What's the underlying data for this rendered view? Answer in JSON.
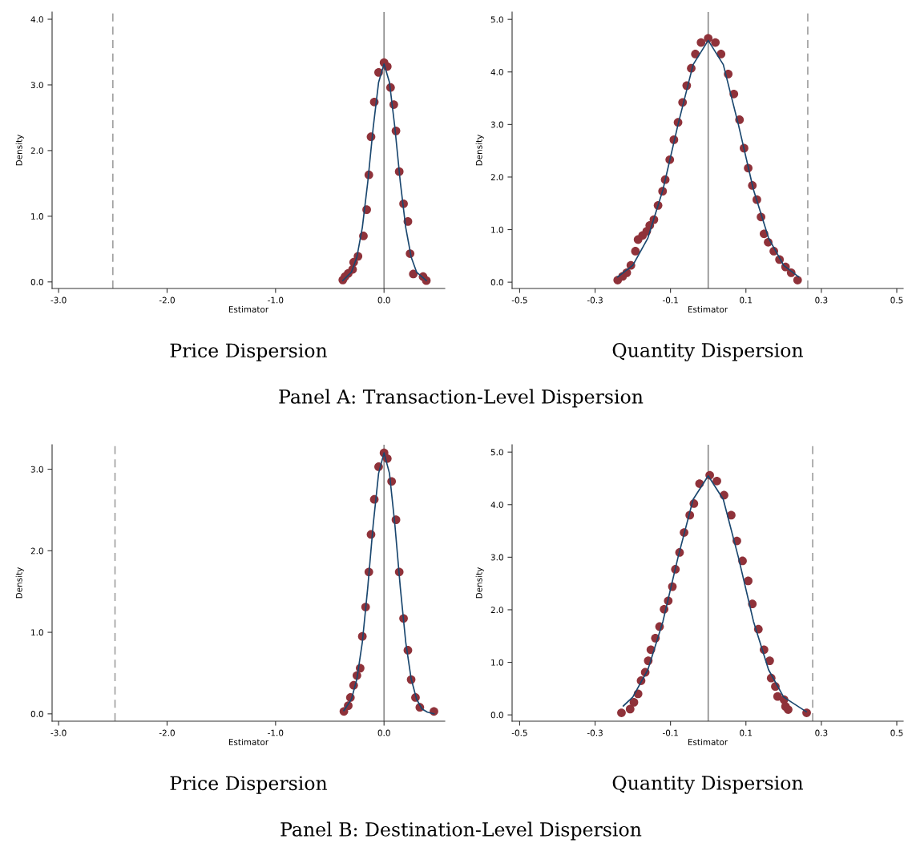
{
  "chart_data": [
    {
      "type": "scatter",
      "title": "Price Dispersion",
      "xlabel": "Estimator",
      "ylabel": "Density",
      "annotations": [
        "Panel A: Transaction-Level Dispersion"
      ],
      "xlim": [
        -3.06,
        0.56
      ],
      "ylim": [
        -0.1,
        4.11
      ],
      "xticks": [
        {
          "value": -3,
          "label": "-3.0"
        },
        {
          "value": -2,
          "label": "-2.0"
        },
        {
          "value": -1,
          "label": "-1.0"
        },
        {
          "value": 0,
          "label": "0.0"
        }
      ],
      "yticks": [
        {
          "value": 0,
          "label": "0.0"
        },
        {
          "value": 1,
          "label": "1.0"
        },
        {
          "value": 2,
          "label": "2.0"
        },
        {
          "value": 3,
          "label": "3.0"
        },
        {
          "value": 4,
          "label": "4.0"
        }
      ],
      "ref_lines": [
        {
          "axis": "x",
          "value": 0,
          "color": "#8c8c8c",
          "line_style": "solid"
        },
        {
          "axis": "x",
          "value": -2.5,
          "color": "#a0a0a0",
          "line_style": "dashed"
        }
      ],
      "series": [
        {
          "marker": "circle",
          "color": "#8f323a",
          "x": [
            -0.38,
            -0.36,
            -0.33,
            -0.29,
            -0.28,
            -0.24,
            -0.19,
            -0.16,
            -0.14,
            -0.12,
            -0.09,
            -0.05,
            0,
            0.03,
            0.06,
            0.09,
            0.11,
            0.14,
            0.18,
            0.22,
            0.24,
            0.27,
            0.36,
            0.39
          ],
          "values": [
            0.03,
            0.08,
            0.13,
            0.19,
            0.3,
            0.39,
            0.7,
            1.1,
            1.63,
            2.21,
            2.74,
            3.19,
            3.34,
            3.28,
            2.96,
            2.7,
            2.3,
            1.68,
            1.19,
            0.92,
            0.43,
            0.12,
            0.08,
            0.02
          ]
        },
        {
          "type": "line",
          "color": "#1a476f",
          "x": [
            -0.38,
            -0.3,
            -0.25,
            -0.2,
            -0.15,
            -0.1,
            -0.05,
            0,
            0.05,
            0.1,
            0.15,
            0.2,
            0.25,
            0.3,
            0.39
          ],
          "values": [
            0.02,
            0.15,
            0.38,
            0.83,
            1.52,
            2.35,
            3.04,
            3.32,
            3.04,
            2.35,
            1.52,
            0.83,
            0.38,
            0.15,
            0.02
          ]
        }
      ]
    },
    {
      "type": "scatter",
      "title": "Quantity Dispersion",
      "xlabel": "Estimator",
      "ylabel": "Density",
      "xlim": [
        -0.52,
        0.517
      ],
      "ylim": [
        -0.12,
        5.14
      ],
      "xticks": [
        -0.5,
        -0.3,
        -0.1,
        0.1,
        0.3,
        0.5
      ],
      "yticks": [
        {
          "value": 0,
          "label": "0.0"
        },
        {
          "value": 1,
          "label": "1.0"
        },
        {
          "value": 2,
          "label": "2.0"
        },
        {
          "value": 3,
          "label": "3.0"
        },
        {
          "value": 4,
          "label": "4.0"
        },
        {
          "value": 5,
          "label": "5.0"
        }
      ],
      "ref_lines": [
        {
          "axis": "x",
          "value": 0,
          "color": "#8c8c8c",
          "line_style": "solid"
        },
        {
          "axis": "x",
          "value": 0.264,
          "color": "#a0a0a0",
          "line_style": "dashed"
        }
      ],
      "series": [
        {
          "marker": "circle",
          "color": "#8f323a",
          "x": [
            -0.24,
            -0.227,
            -0.216,
            -0.205,
            -0.193,
            -0.186,
            -0.174,
            -0.163,
            -0.155,
            -0.144,
            -0.133,
            -0.121,
            -0.114,
            -0.102,
            -0.091,
            -0.08,
            -0.068,
            -0.057,
            -0.045,
            -0.034,
            -0.019,
            0,
            0.019,
            0.034,
            0.053,
            0.068,
            0.083,
            0.095,
            0.106,
            0.117,
            0.129,
            0.14,
            0.148,
            0.159,
            0.174,
            0.189,
            0.205,
            0.22,
            0.237
          ],
          "values": [
            0.04,
            0.11,
            0.18,
            0.32,
            0.59,
            0.81,
            0.89,
            0.97,
            1.08,
            1.19,
            1.46,
            1.73,
            1.95,
            2.33,
            2.71,
            3.04,
            3.42,
            3.74,
            4.07,
            4.34,
            4.56,
            4.64,
            4.56,
            4.34,
            3.96,
            3.58,
            3.09,
            2.55,
            2.17,
            1.84,
            1.57,
            1.24,
            0.92,
            0.76,
            0.59,
            0.43,
            0.29,
            0.18,
            0.04
          ]
        },
        {
          "type": "line",
          "color": "#1a476f",
          "x": [
            -0.24,
            -0.2,
            -0.16,
            -0.12,
            -0.08,
            -0.04,
            0,
            0.04,
            0.08,
            0.12,
            0.16,
            0.2,
            0.24
          ],
          "values": [
            0.1,
            0.32,
            0.84,
            1.76,
            3.0,
            4.14,
            4.6,
            4.14,
            3.0,
            1.76,
            0.84,
            0.32,
            0.1
          ]
        }
      ]
    },
    {
      "type": "scatter",
      "title": "Price Dispersion",
      "xlabel": "Estimator",
      "ylabel": "Density",
      "annotations": [
        "Panel B: Destination-Level Dispersion"
      ],
      "xlim": [
        -3.06,
        0.56
      ],
      "ylim": [
        -0.09,
        3.3
      ],
      "xticks": [
        {
          "value": -3,
          "label": "-3.0"
        },
        {
          "value": -2,
          "label": "-2.0"
        },
        {
          "value": -1,
          "label": "-1.0"
        },
        {
          "value": 0,
          "label": "0.0"
        }
      ],
      "yticks": [
        {
          "value": 0,
          "label": "0.0"
        },
        {
          "value": 1,
          "label": "1.0"
        },
        {
          "value": 2,
          "label": "2.0"
        },
        {
          "value": 3,
          "label": "3.0"
        }
      ],
      "ref_lines": [
        {
          "axis": "x",
          "value": 0,
          "color": "#8c8c8c",
          "line_style": "solid"
        },
        {
          "axis": "x",
          "value": -2.48,
          "color": "#a0a0a0",
          "line_style": "dashed"
        }
      ],
      "series": [
        {
          "marker": "circle",
          "color": "#8f323a",
          "x": [
            -0.37,
            -0.33,
            -0.31,
            -0.28,
            -0.25,
            -0.22,
            -0.2,
            -0.17,
            -0.14,
            -0.12,
            -0.09,
            -0.05,
            0,
            0.03,
            0.07,
            0.11,
            0.14,
            0.18,
            0.22,
            0.25,
            0.29,
            0.33,
            0.46
          ],
          "values": [
            0.03,
            0.1,
            0.2,
            0.35,
            0.47,
            0.56,
            0.95,
            1.31,
            1.74,
            2.2,
            2.63,
            3.03,
            3.2,
            3.13,
            2.85,
            2.38,
            1.74,
            1.17,
            0.78,
            0.42,
            0.2,
            0.08,
            0.03
          ]
        },
        {
          "type": "line",
          "color": "#1a476f",
          "x": [
            -0.37,
            -0.3,
            -0.25,
            -0.2,
            -0.15,
            -0.1,
            -0.05,
            0,
            0.05,
            0.1,
            0.15,
            0.2,
            0.25,
            0.3,
            0.35,
            0.4,
            0.46
          ],
          "values": [
            0.04,
            0.18,
            0.43,
            0.88,
            1.55,
            2.32,
            2.95,
            3.2,
            2.95,
            2.32,
            1.55,
            0.88,
            0.43,
            0.18,
            0.06,
            0.02,
            0.0
          ]
        }
      ]
    },
    {
      "type": "scatter",
      "title": "Quantity Dispersion",
      "xlabel": "Estimator",
      "ylabel": "Density",
      "xlim": [
        -0.52,
        0.517
      ],
      "ylim": [
        -0.12,
        5.14
      ],
      "xticks": [
        -0.5,
        -0.3,
        -0.1,
        0.1,
        0.3,
        0.5
      ],
      "yticks": [
        {
          "value": 0,
          "label": "0.0"
        },
        {
          "value": 1,
          "label": "1.0"
        },
        {
          "value": 2,
          "label": "2.0"
        },
        {
          "value": 3,
          "label": "3.0"
        },
        {
          "value": 4,
          "label": "4.0"
        },
        {
          "value": 5,
          "label": "5.0"
        }
      ],
      "ref_lines": [
        {
          "axis": "x",
          "value": 0,
          "color": "#8c8c8c",
          "line_style": "solid"
        },
        {
          "axis": "x",
          "value": 0.277,
          "color": "#a0a0a0",
          "line_style": "dashed"
        }
      ],
      "series": [
        {
          "marker": "circle",
          "color": "#8f323a",
          "x": [
            -0.23,
            -0.207,
            -0.197,
            -0.186,
            -0.178,
            -0.167,
            -0.159,
            -0.152,
            -0.14,
            -0.129,
            -0.117,
            -0.106,
            -0.095,
            -0.087,
            -0.076,
            -0.064,
            -0.049,
            -0.038,
            -0.023,
            0.004,
            0.023,
            0.042,
            0.061,
            0.076,
            0.091,
            0.106,
            0.117,
            0.133,
            0.148,
            0.163,
            0.167,
            0.178,
            0.184,
            0.201,
            0.205,
            0.212,
            0.261
          ],
          "values": [
            0.04,
            0.11,
            0.24,
            0.4,
            0.65,
            0.81,
            1.03,
            1.24,
            1.46,
            1.68,
            2.01,
            2.17,
            2.44,
            2.77,
            3.09,
            3.47,
            3.8,
            4.02,
            4.4,
            4.56,
            4.45,
            4.18,
            3.8,
            3.31,
            2.93,
            2.55,
            2.11,
            1.63,
            1.24,
            1.03,
            0.7,
            0.54,
            0.35,
            0.29,
            0.16,
            0.1,
            0.04
          ]
        },
        {
          "type": "line",
          "color": "#1a476f",
          "x": [
            -0.225,
            -0.2,
            -0.16,
            -0.12,
            -0.08,
            -0.04,
            0,
            0.04,
            0.08,
            0.12,
            0.16,
            0.2,
            0.26
          ],
          "values": [
            0.17,
            0.34,
            0.86,
            1.78,
            3.0,
            4.1,
            4.55,
            4.1,
            3.0,
            1.78,
            0.86,
            0.34,
            0.06
          ]
        }
      ]
    }
  ]
}
